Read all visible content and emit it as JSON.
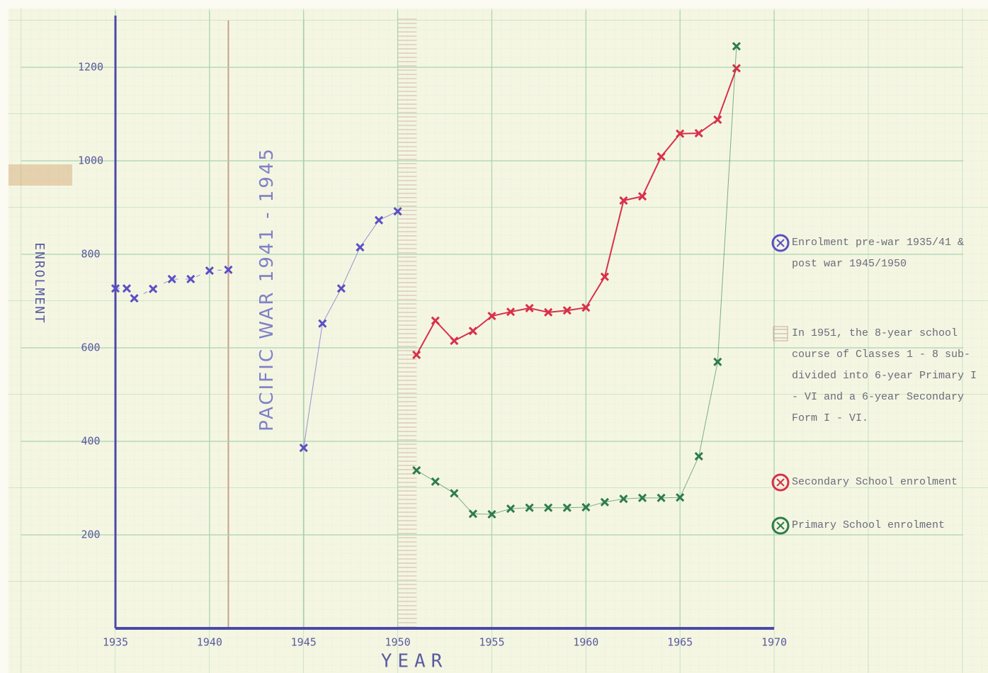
{
  "chart_data": {
    "type": "line",
    "xlabel": "YEAR",
    "ylabel": "ENROLMENT",
    "annotation": "PACIFIC WAR 1941 - 1945",
    "war_years": [
      1941,
      1945
    ],
    "reorganisation_band": [
      1950,
      1951
    ],
    "reorganisation_note": "In 1951, the 8-year school course of Classes 1 - 8 sub-divided into 6-year Primary I - VI and a 6-year Secondary Form I - VI.",
    "xlim": [
      1935,
      1970
    ],
    "xticks": [
      1935,
      1940,
      1945,
      1950,
      1955,
      1960,
      1965,
      1970
    ],
    "ylim": [
      0,
      1300
    ],
    "yticks": [
      200,
      400,
      600,
      800,
      1000,
      1200
    ],
    "grid": true,
    "series": [
      {
        "name": "Enrolment pre-war 1935/41 & post war 1945/1950",
        "color": "#5b4fc4",
        "x": [
          1935,
          1935.6,
          1936,
          1937,
          1938,
          1939,
          1940,
          1941,
          1943,
          1945,
          1946,
          1947,
          1948,
          1949,
          1950
        ],
        "values": [
          727,
          727,
          706,
          726,
          747,
          747,
          765,
          767,
          null,
          386,
          652,
          727,
          815,
          873,
          892
        ]
      },
      {
        "name": "Secondary School enrolment",
        "color": "#d9304a",
        "x": [
          1951,
          1952,
          1953,
          1954,
          1955,
          1956,
          1957,
          1958,
          1959,
          1960,
          1961,
          1962,
          1963,
          1964,
          1965,
          1966,
          1967,
          1968
        ],
        "values": [
          585,
          658,
          615,
          636,
          668,
          677,
          685,
          676,
          680,
          686,
          752,
          915,
          924,
          1009,
          1058,
          1059,
          1088,
          1198
        ]
      },
      {
        "name": "Primary School enrolment",
        "color": "#2e7d4a",
        "x": [
          1951,
          1952,
          1953,
          1954,
          1955,
          1956,
          1957,
          1958,
          1959,
          1960,
          1961,
          1962,
          1963,
          1964,
          1965,
          1966,
          1967,
          1968
        ],
        "values": [
          338,
          314,
          289,
          245,
          244,
          256,
          258,
          258,
          258,
          259,
          270,
          277,
          279,
          279,
          280,
          368,
          570,
          1245
        ]
      }
    ]
  }
}
